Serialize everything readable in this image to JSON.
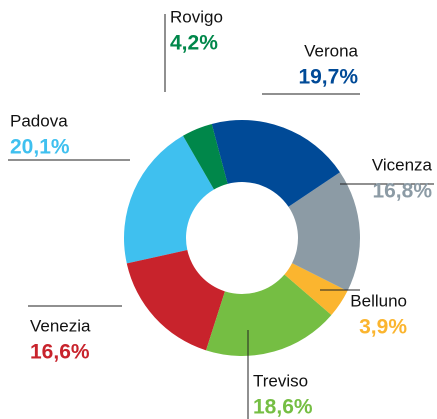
{
  "chart_data": {
    "type": "pie",
    "categories": [
      "Rovigo",
      "Verona",
      "Vicenza",
      "Belluno",
      "Treviso",
      "Venezia",
      "Padova"
    ],
    "values": [
      4.2,
      19.7,
      16.8,
      3.9,
      18.6,
      16.6,
      20.1
    ],
    "value_labels": [
      "4,2%",
      "19,7%",
      "16,8%",
      "3,9%",
      "18,6%",
      "16,6%",
      "20,1%"
    ],
    "colors": [
      "#00874a",
      "#004a97",
      "#8c9ba5",
      "#fbb52f",
      "#75be43",
      "#c8232c",
      "#3fc0ef"
    ]
  }
}
